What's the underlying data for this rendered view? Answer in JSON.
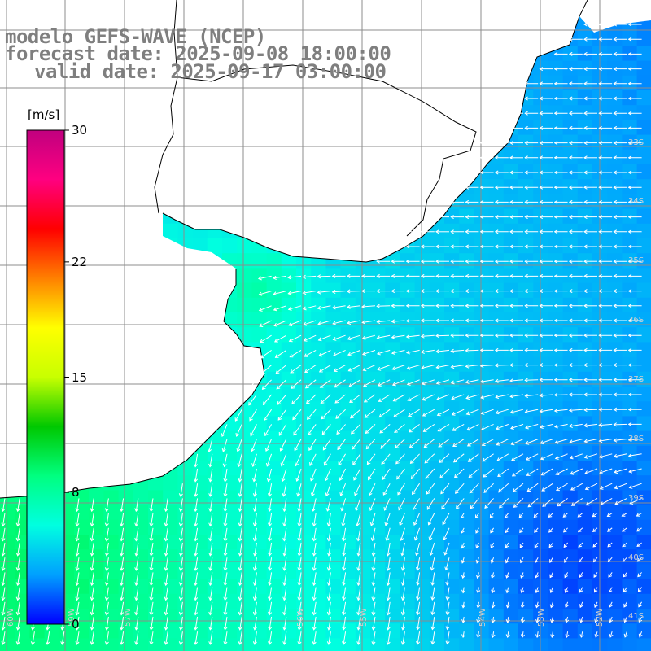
{
  "title": {
    "line1": "modelo GEFS-WAVE (NCEP)",
    "line2": "forecast date: 2025-09-08 18:00:00",
    "line3": "valid date: 2025-09-17 03:00:00"
  },
  "colorbar": {
    "unit": "[m/s]",
    "ticks": [
      {
        "value": 30,
        "label": "30"
      },
      {
        "value": 22,
        "label": "22"
      },
      {
        "value": 15,
        "label": "15"
      },
      {
        "value": 8,
        "label": "8"
      },
      {
        "value": 0,
        "label": "0"
      }
    ],
    "min": 0,
    "max": 30,
    "colors": [
      "#0000ff",
      "#00a0ff",
      "#00ffe0",
      "#00ff80",
      "#00c800",
      "#c8ff00",
      "#ffff00",
      "#ff8000",
      "#ff0000",
      "#ff0080",
      "#c0007f"
    ]
  },
  "map": {
    "land_color": "#ffffff",
    "grid_color": "#8c8c8c",
    "coast_color": "#000000",
    "arrow_color": "#ffffff",
    "label_color": "#d0d0d0",
    "lon_labels": [
      "60W",
      "59W",
      "57W",
      "56W",
      "55W",
      "54W",
      "53W",
      "52W",
      "51W"
    ],
    "lat_labels": [
      "33S",
      "34S",
      "35S",
      "36S",
      "37S",
      "38S",
      "39S",
      "40S",
      "41S"
    ]
  }
}
